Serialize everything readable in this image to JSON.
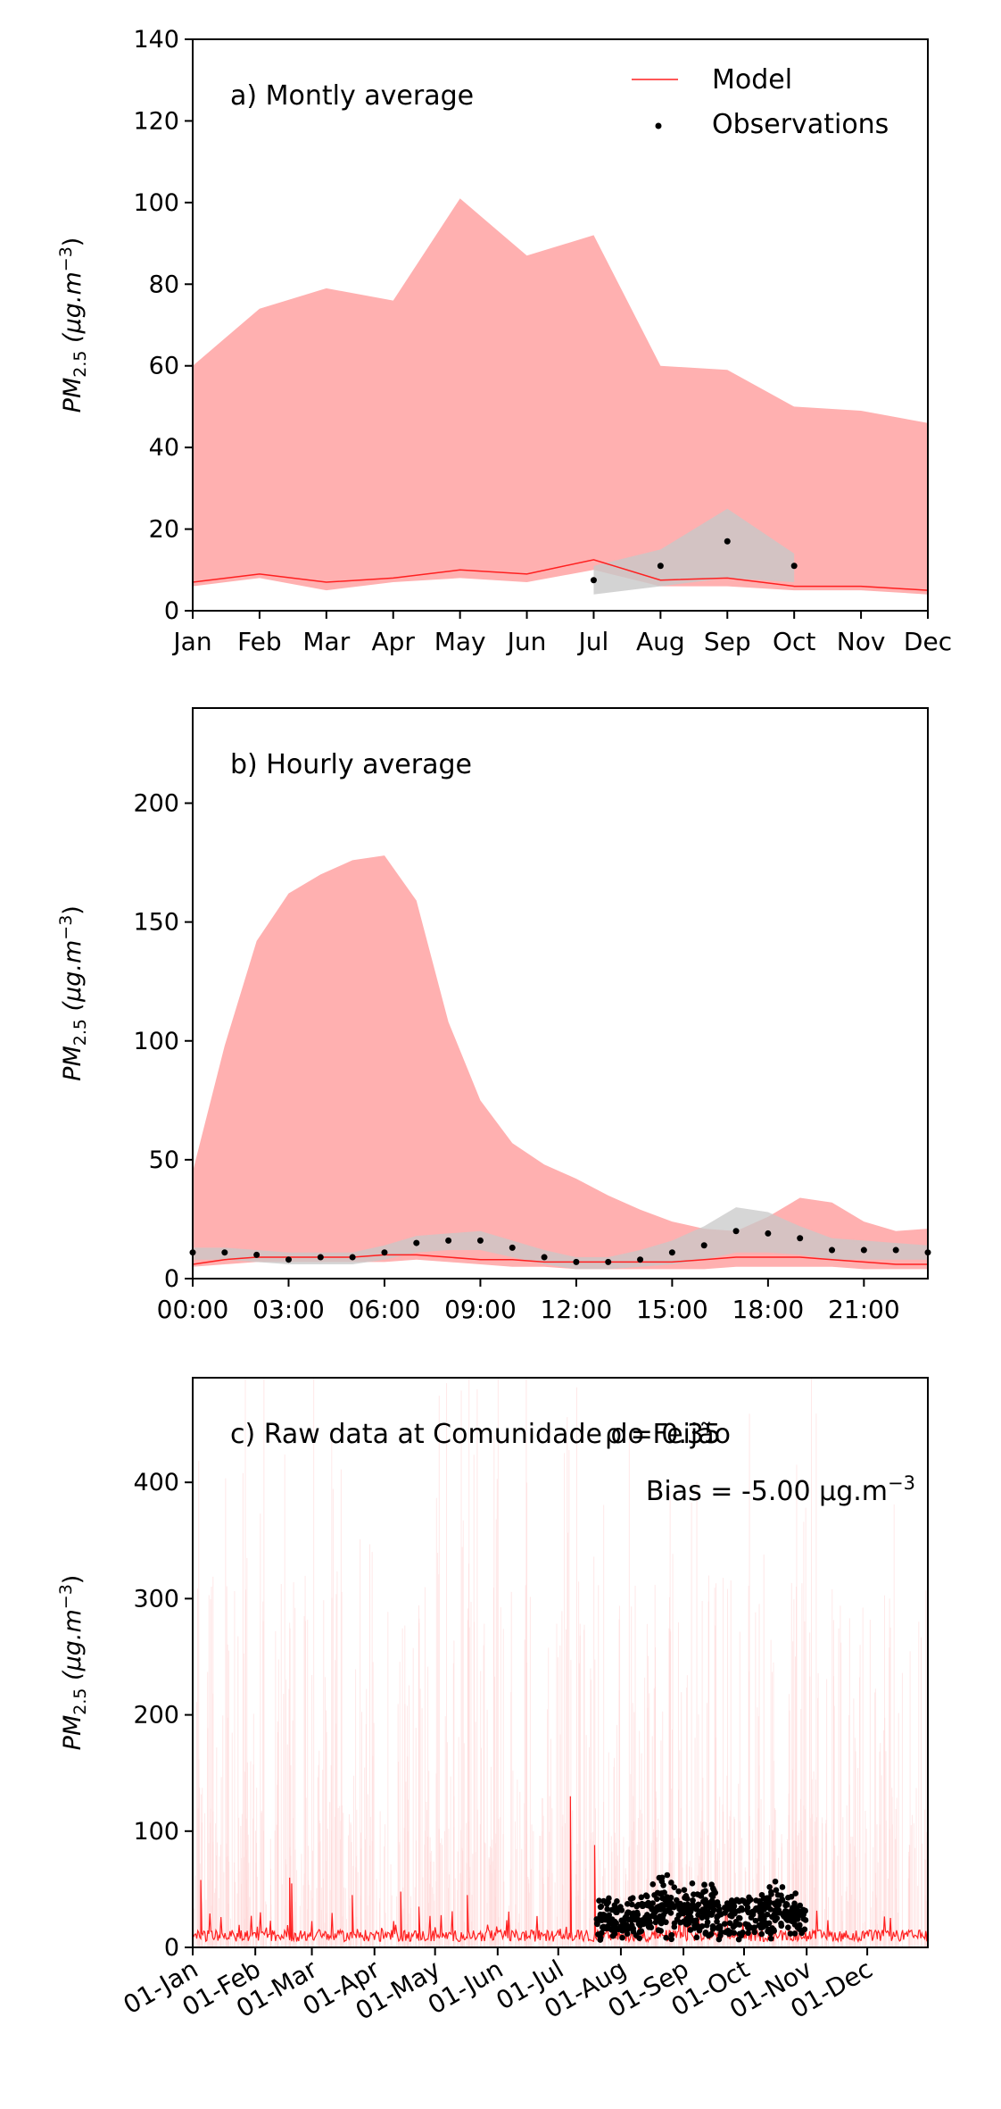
{
  "colors": {
    "model_band": "#ffb0b0",
    "model_line": "#ff2020",
    "model_raw_shade": "#ffd6d6",
    "obs_band": "#c8c8c8",
    "obs_point": "#000000"
  },
  "legend": {
    "model": "Model",
    "observations": "Observations",
    "position": "top-right"
  },
  "chart_data": [
    {
      "type": "area",
      "panel_label": "a) Montly average",
      "ylabel": "PM2.5 (μg.m−3)",
      "ylim": [
        0,
        140
      ],
      "yticks": [
        0,
        20,
        40,
        60,
        80,
        100,
        120,
        140
      ],
      "x_tick_labels": [
        "Jan",
        "Feb",
        "Mar",
        "Apr",
        "May",
        "Jun",
        "Jul",
        "Aug",
        "Sep",
        "Oct",
        "Nov",
        "Dec"
      ],
      "series": [
        {
          "name": "Model",
          "values": [
            7,
            9,
            7,
            8,
            10,
            9,
            12.5,
            7.5,
            8,
            6,
            6,
            5
          ]
        },
        {
          "name": "Model band upper",
          "values": [
            60,
            74,
            79,
            76,
            101,
            87,
            92,
            60,
            59,
            50,
            49,
            46
          ]
        },
        {
          "name": "Model band lower",
          "values": [
            6,
            8,
            5,
            7,
            8,
            7,
            10,
            6,
            6,
            5,
            5,
            4
          ]
        }
      ],
      "observations": {
        "months": [
          "Jul",
          "Aug",
          "Sep",
          "Oct"
        ],
        "values": [
          7.5,
          11,
          17,
          11
        ],
        "band_upper": [
          11,
          15,
          25,
          14
        ],
        "band_lower": [
          4,
          6,
          8,
          7
        ]
      }
    },
    {
      "type": "area",
      "panel_label": "b) Hourly average",
      "ylabel": "PM2.5 (μg.m−3)",
      "ylim": [
        0,
        240
      ],
      "yticks": [
        0,
        50,
        100,
        150,
        200
      ],
      "x_tick_labels": [
        "00:00",
        "03:00",
        "06:00",
        "09:00",
        "12:00",
        "15:00",
        "18:00",
        "21:00"
      ],
      "hours": [
        0,
        1,
        2,
        3,
        4,
        5,
        6,
        7,
        8,
        9,
        10,
        11,
        12,
        13,
        14,
        15,
        16,
        17,
        18,
        19,
        20,
        21,
        22,
        23
      ],
      "series": [
        {
          "name": "Model",
          "values": [
            6,
            8,
            9,
            9,
            9,
            9,
            10,
            10,
            9,
            8,
            8,
            7,
            7,
            7,
            7,
            7,
            8,
            9,
            9,
            9,
            8,
            7,
            6,
            6
          ]
        },
        {
          "name": "Model band upper",
          "values": [
            45,
            98,
            142,
            162,
            170,
            176,
            178,
            159,
            108,
            75,
            57,
            48,
            42,
            35,
            29,
            24,
            21,
            20,
            26,
            34,
            32,
            24,
            20,
            21
          ]
        },
        {
          "name": "Model band lower",
          "values": [
            5,
            6,
            7,
            7,
            7,
            7,
            7,
            8,
            7,
            6,
            5,
            5,
            4,
            4,
            4,
            4,
            4,
            5,
            5,
            5,
            5,
            4,
            4,
            4
          ]
        }
      ],
      "observations": {
        "values": [
          11,
          11,
          10,
          8,
          9,
          9,
          11,
          15,
          16,
          16,
          13,
          9,
          7,
          7,
          8,
          11,
          14,
          20,
          19,
          17,
          12,
          12,
          12,
          11
        ],
        "band_upper": [
          13,
          13,
          12,
          11,
          11,
          11,
          14,
          18,
          19,
          20,
          16,
          12,
          9,
          9,
          12,
          16,
          22,
          30,
          28,
          22,
          17,
          16,
          15,
          14
        ],
        "band_lower": [
          8,
          8,
          7,
          6,
          6,
          6,
          8,
          11,
          12,
          12,
          9,
          6,
          4,
          4,
          5,
          6,
          8,
          11,
          11,
          10,
          8,
          8,
          8,
          8
        ]
      }
    },
    {
      "type": "line",
      "panel_label": "c) Raw data at Comunidade do Feijão",
      "rho_label": "ρ = 0.35",
      "bias_label": "Bias = -5.00 μg.m−3",
      "ylabel": "PM2.5 (μg.m−3)",
      "ylim": [
        0,
        490
      ],
      "yticks": [
        0,
        100,
        200,
        300,
        400
      ],
      "x_tick_labels": [
        "01-Jan",
        "01-Feb",
        "01-Mar",
        "01-Apr",
        "01-May",
        "01-Jun",
        "01-Jul",
        "01-Aug",
        "01-Sep",
        "01-Oct",
        "01-Nov",
        "01-Dec"
      ],
      "x_ticks_day_of_year": [
        1,
        32,
        60,
        91,
        121,
        152,
        182,
        213,
        244,
        274,
        305,
        335
      ],
      "model_spikes": [
        {
          "day": 5,
          "value": 58
        },
        {
          "day": 49,
          "value": 60
        },
        {
          "day": 50,
          "value": 55
        },
        {
          "day": 80,
          "value": 45
        },
        {
          "day": 104,
          "value": 48
        },
        {
          "day": 137,
          "value": 45
        },
        {
          "day": 188,
          "value": 130
        },
        {
          "day": 200,
          "value": 88
        },
        {
          "day": 113,
          "value": 35
        },
        {
          "day": 246,
          "value": 30
        },
        {
          "day": 340,
          "value": 12
        }
      ],
      "observations_period_days": [
        201,
        305
      ],
      "observations_typical_range": [
        5,
        55
      ]
    }
  ]
}
